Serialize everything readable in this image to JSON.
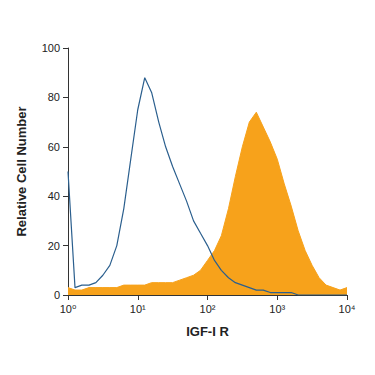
{
  "chart_data": {
    "type": "line",
    "x_label": "IGF-I R",
    "y_label": "Relative Cell Number",
    "log": "x",
    "grid": false,
    "xlim": [
      1,
      10000
    ],
    "xticks": [
      {
        "value": 1,
        "label": "10⁰"
      },
      {
        "value": 10,
        "label": "10¹"
      },
      {
        "value": 100,
        "label": "10²"
      },
      {
        "value": 1000,
        "label": "10³"
      },
      {
        "value": 10000,
        "label": "10⁴"
      }
    ],
    "ylim": [
      0,
      100
    ],
    "yticks": [
      0,
      20,
      40,
      60,
      80,
      100
    ],
    "x": [
      1,
      1.26,
      1.58,
      2,
      2.51,
      3.16,
      3.98,
      5.01,
      6.31,
      7.94,
      10,
      12.6,
      15.8,
      20,
      25.1,
      31.6,
      39.8,
      50.1,
      63.1,
      79.4,
      100,
      126,
      158,
      200,
      251,
      316,
      398,
      501,
      631,
      794,
      1000,
      1259,
      1585,
      1995,
      2512,
      3162,
      3981,
      5012,
      6310,
      7943,
      10000
    ],
    "series": [
      {
        "type": "area",
        "color": "#f7a21b",
        "values": [
          3,
          2,
          2,
          3,
          3,
          3,
          3,
          3,
          4,
          4,
          4,
          4,
          5,
          5,
          5,
          5,
          6,
          7,
          8,
          10,
          14,
          18,
          24,
          35,
          48,
          60,
          70,
          74,
          68,
          62,
          55,
          45,
          36,
          26,
          18,
          12,
          7,
          4,
          3,
          2,
          3
        ]
      },
      {
        "type": "line",
        "color": "#2b5f8e",
        "values": [
          50,
          3,
          4,
          4,
          5,
          8,
          12,
          20,
          35,
          55,
          75,
          88,
          82,
          70,
          60,
          52,
          45,
          38,
          30,
          25,
          20,
          14,
          10,
          7,
          5,
          4,
          3,
          2,
          2,
          1,
          1,
          1,
          1,
          0,
          0,
          0,
          0,
          0,
          0,
          0,
          0
        ]
      }
    ]
  }
}
